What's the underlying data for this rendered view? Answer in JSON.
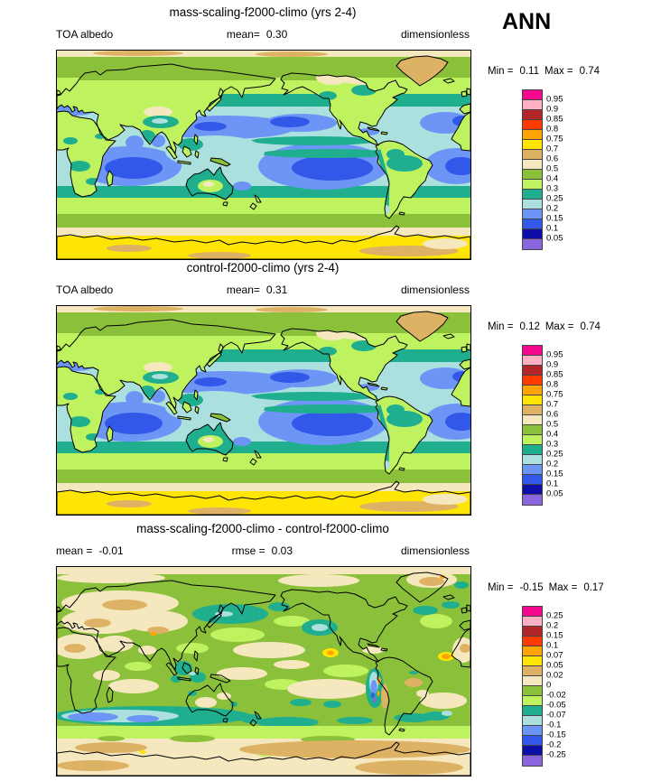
{
  "season_label": "ANN",
  "palette_top_to_bottom": [
    "#F5078E",
    "#FFB0C5",
    "#B22528",
    "#FF3B00",
    "#FFA405",
    "#FFE504",
    "#DEB264",
    "#F6E8BE",
    "#8BC03A",
    "#BFF25F",
    "#1FAF8E",
    "#ABE0DE",
    "#6D95F5",
    "#3158E8",
    "#0D0DA8",
    "#8A66DE"
  ],
  "panels": [
    {
      "title": "mass-scaling-f2000-climo (yrs 2-4)",
      "row": {
        "left": "TOA albedo",
        "center_label": "mean=",
        "center_value": "0.30",
        "right": "dimensionless"
      },
      "legend": {
        "min_label": "Min =",
        "min_value": "0.11",
        "max_label": "Max =",
        "max_value": "0.74"
      },
      "cbar_labels": [
        "0.95",
        "0.9",
        "0.85",
        "0.8",
        "0.75",
        "0.7",
        "0.6",
        "0.5",
        "0.4",
        "0.3",
        "0.25",
        "0.2",
        "0.15",
        "0.1",
        "0.05"
      ]
    },
    {
      "title": "control-f2000-climo (yrs 2-4)",
      "row": {
        "left": "TOA albedo",
        "center_label": "mean=",
        "center_value": "0.31",
        "right": "dimensionless"
      },
      "legend": {
        "min_label": "Min =",
        "min_value": "0.12",
        "max_label": "Max =",
        "max_value": "0.74"
      },
      "cbar_labels": [
        "0.95",
        "0.9",
        "0.85",
        "0.8",
        "0.75",
        "0.7",
        "0.6",
        "0.5",
        "0.4",
        "0.3",
        "0.25",
        "0.2",
        "0.15",
        "0.1",
        "0.05"
      ]
    },
    {
      "title": "mass-scaling-f2000-climo - control-f2000-climo",
      "row": {
        "left_label": "mean =",
        "left_value": "-0.01",
        "center_label": "rmse =",
        "center_value": "0.03",
        "right": "dimensionless"
      },
      "legend": {
        "min_label": "Min =",
        "min_value": "-0.15",
        "max_label": "Max =",
        "max_value": "0.17"
      },
      "cbar_labels": [
        "0.25",
        "0.2",
        "0.15",
        "0.1",
        "0.07",
        "0.05",
        "0.02",
        "0",
        "-0.02",
        "-0.05",
        "-0.07",
        "-0.1",
        "-0.15",
        "-0.2",
        "-0.25"
      ]
    }
  ],
  "chart_data": [
    {
      "type": "heatmap",
      "subtype": "global filled-contour map",
      "title": "mass-scaling-f2000-climo (yrs 2-4)",
      "variable": "TOA albedo",
      "units": "dimensionless",
      "season": "ANN",
      "mean": 0.3,
      "min": 0.11,
      "max": 0.74,
      "contour_levels": [
        0.05,
        0.1,
        0.15,
        0.2,
        0.25,
        0.3,
        0.4,
        0.5,
        0.6,
        0.7,
        0.75,
        0.8,
        0.85,
        0.9,
        0.95
      ],
      "palette_low_to_high": [
        "#8A66DE",
        "#0D0DA8",
        "#3158E8",
        "#6D95F5",
        "#ABE0DE",
        "#1FAF8E",
        "#BFF25F",
        "#8BC03A",
        "#F6E8BE",
        "#DEB264",
        "#FFE504",
        "#FFA405",
        "#FF3B00",
        "#B22528",
        "#FFB0C5",
        "#F5078E"
      ],
      "legend_position": "right"
    },
    {
      "type": "heatmap",
      "subtype": "global filled-contour map",
      "title": "control-f2000-climo (yrs 2-4)",
      "variable": "TOA albedo",
      "units": "dimensionless",
      "season": "ANN",
      "mean": 0.31,
      "min": 0.12,
      "max": 0.74,
      "contour_levels": [
        0.05,
        0.1,
        0.15,
        0.2,
        0.25,
        0.3,
        0.4,
        0.5,
        0.6,
        0.7,
        0.75,
        0.8,
        0.85,
        0.9,
        0.95
      ],
      "palette_low_to_high": [
        "#8A66DE",
        "#0D0DA8",
        "#3158E8",
        "#6D95F5",
        "#ABE0DE",
        "#1FAF8E",
        "#BFF25F",
        "#8BC03A",
        "#F6E8BE",
        "#DEB264",
        "#FFE504",
        "#FFA405",
        "#FF3B00",
        "#B22528",
        "#FFB0C5",
        "#F5078E"
      ],
      "legend_position": "right"
    },
    {
      "type": "heatmap",
      "subtype": "global filled-contour difference map",
      "title": "mass-scaling-f2000-climo - control-f2000-climo",
      "units": "dimensionless",
      "season": "ANN",
      "mean": -0.01,
      "rmse": 0.03,
      "min": -0.15,
      "max": 0.17,
      "contour_levels": [
        -0.25,
        -0.2,
        -0.15,
        -0.1,
        -0.07,
        -0.05,
        -0.02,
        0,
        0.02,
        0.05,
        0.07,
        0.1,
        0.15,
        0.2,
        0.25
      ],
      "palette_low_to_high": [
        "#8A66DE",
        "#0D0DA8",
        "#3158E8",
        "#6D95F5",
        "#ABE0DE",
        "#1FAF8E",
        "#BFF25F",
        "#8BC03A",
        "#F6E8BE",
        "#DEB264",
        "#FFE504",
        "#FFA405",
        "#FF3B00",
        "#B22528",
        "#FFB0C5",
        "#F5078E"
      ],
      "legend_position": "right"
    }
  ]
}
